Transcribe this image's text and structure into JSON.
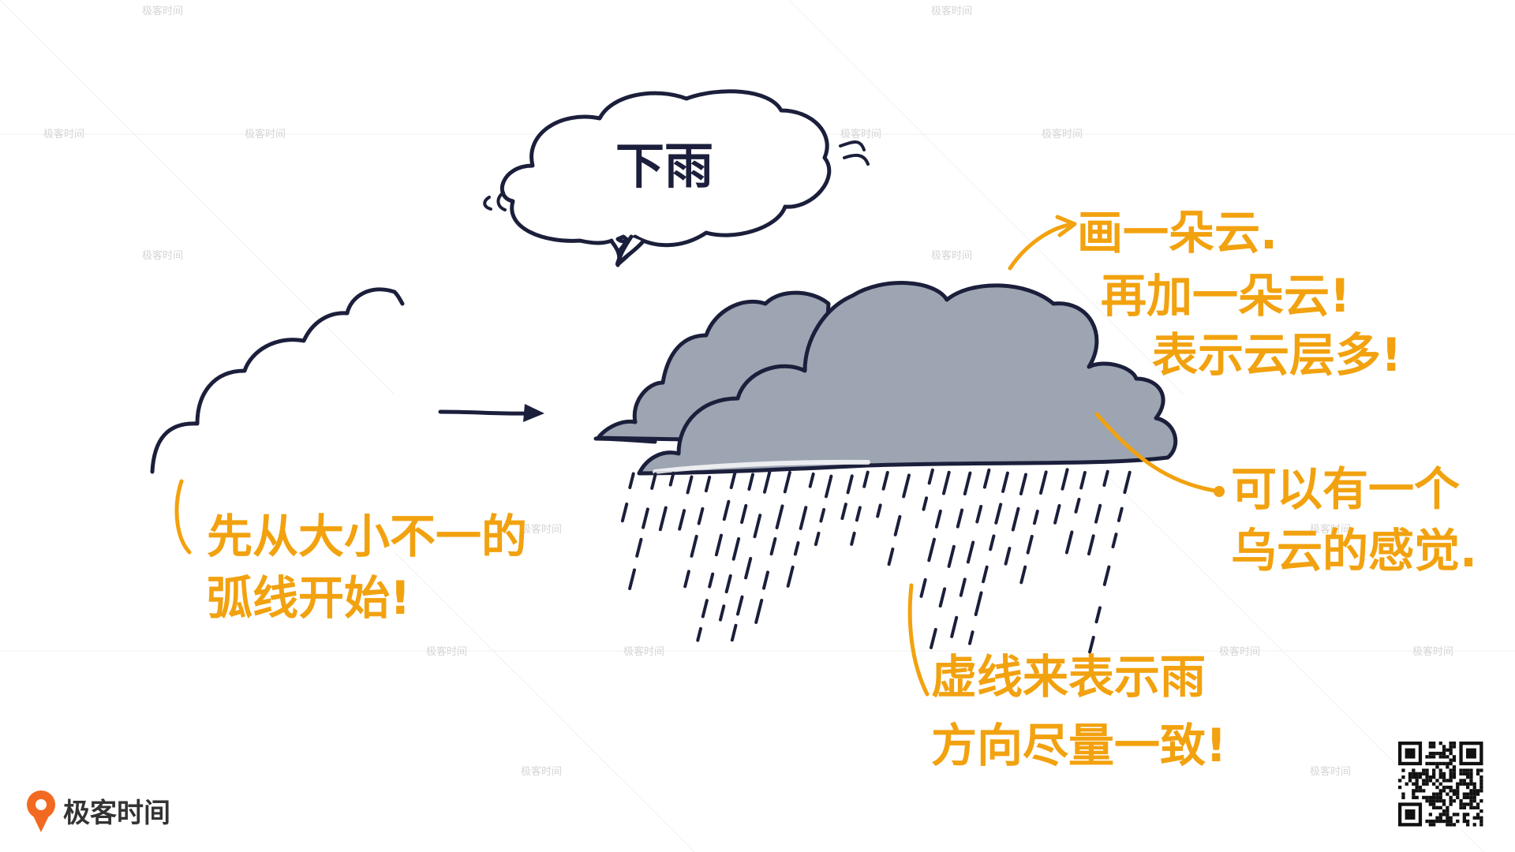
{
  "speech_bubble": {
    "text": "下雨"
  },
  "annotations": {
    "start_with_arcs": [
      "先从大小不一的",
      "弧线开始!"
    ],
    "draw_cloud": [
      "画一朵云.",
      "再加一朵云!",
      "表示云层多!"
    ],
    "dark_cloud_feel": [
      "可以有一个",
      "乌云的感觉."
    ],
    "dashed_lines": [
      "虚线来表示雨",
      "方向尽量一致!"
    ]
  },
  "branding": {
    "logo_text": "极客时间",
    "watermark_text": "极客时间"
  },
  "colors": {
    "ink": "#1b1f3b",
    "annotation": "#f2a20f",
    "cloud_fill": "#9da4b2",
    "logo_orange": "#f26a21"
  },
  "icons": {
    "logo": "geek-time-logo-icon",
    "qr": "qr-code-icon"
  }
}
